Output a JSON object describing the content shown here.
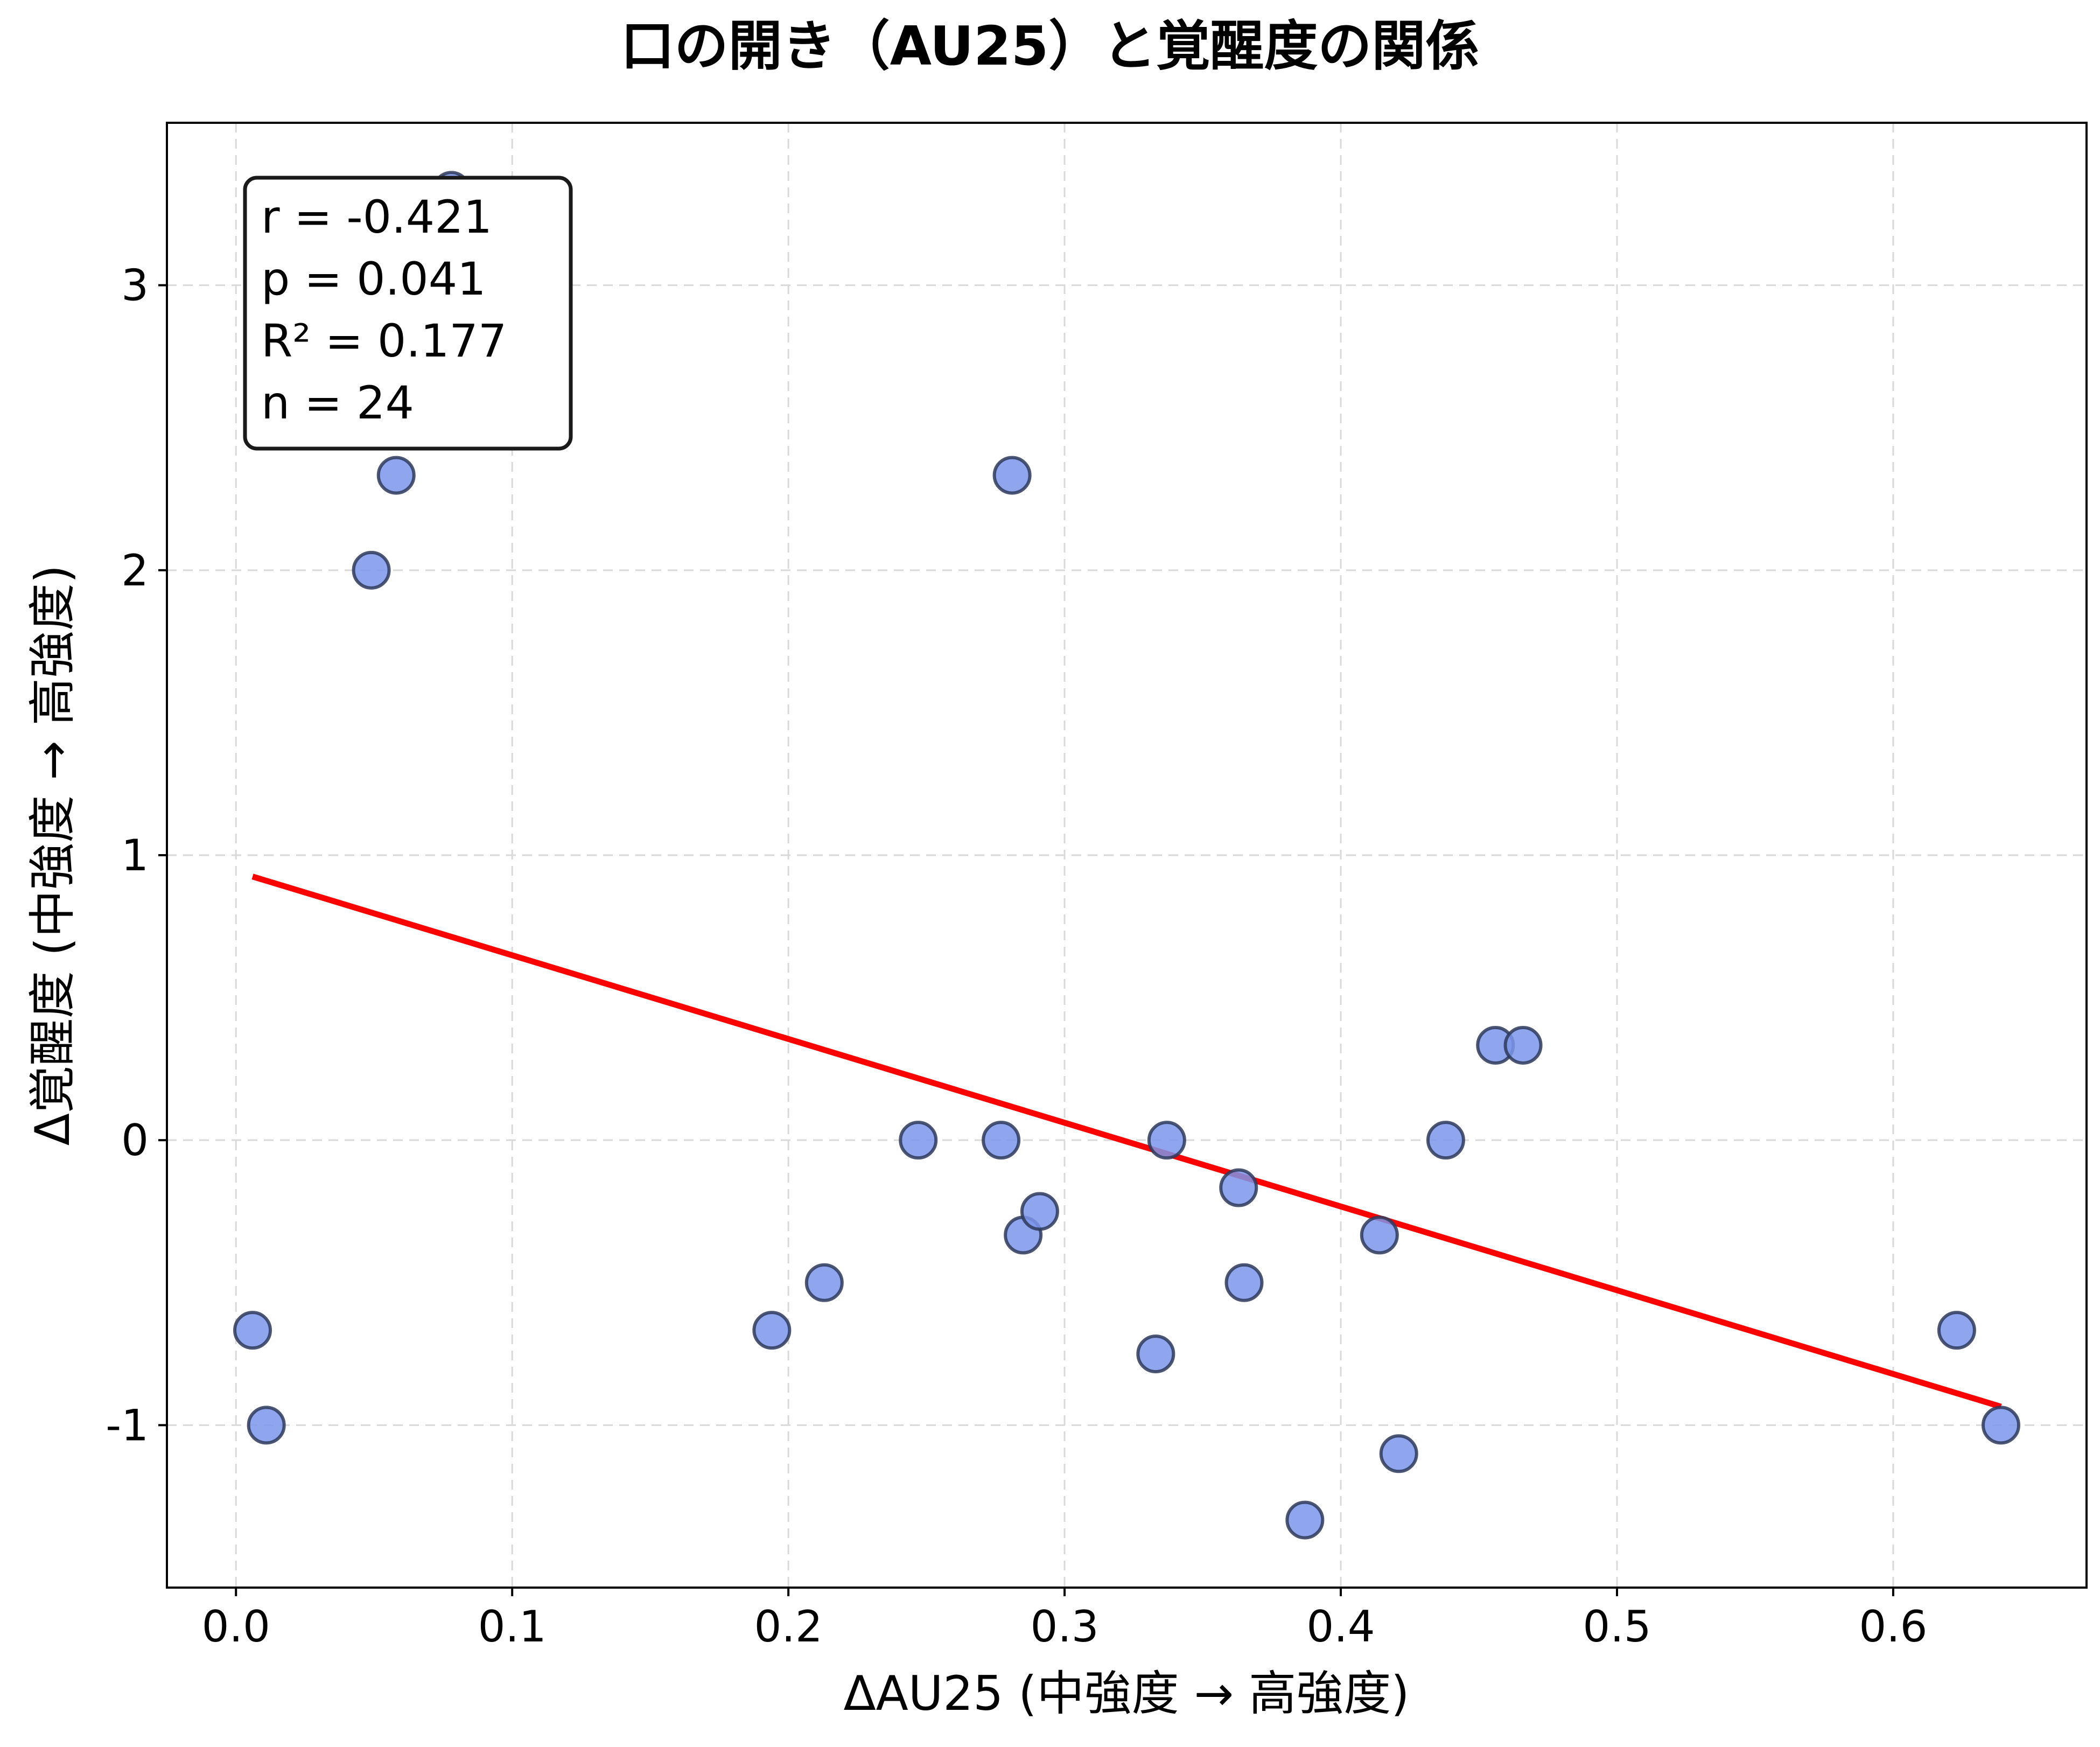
{
  "chart_data": {
    "type": "scatter",
    "title": "口の開き（AU25）と覚醒度の関係",
    "xlabel": "ΔAU25 (中強度 → 高強度)",
    "ylabel": "Δ覚醒度 (中強度 → 高強度)",
    "xlim": [
      -0.025,
      0.67
    ],
    "ylim": [
      -1.57,
      3.57
    ],
    "xticks": [
      0.0,
      0.1,
      0.2,
      0.3,
      0.4,
      0.5,
      0.6
    ],
    "xtick_labels": [
      "0.0",
      "0.1",
      "0.2",
      "0.3",
      "0.4",
      "0.5",
      "0.6"
    ],
    "yticks": [
      3,
      2,
      1,
      0,
      -1
    ],
    "ytick_labels": [
      "3",
      "2",
      "1",
      "0",
      "-1"
    ],
    "grid": true,
    "points": [
      {
        "x": 0.006,
        "y": -0.667
      },
      {
        "x": 0.011,
        "y": -1.0
      },
      {
        "x": 0.049,
        "y": 2.0
      },
      {
        "x": 0.058,
        "y": 2.333
      },
      {
        "x": 0.078,
        "y": 3.333
      },
      {
        "x": 0.194,
        "y": -0.667
      },
      {
        "x": 0.213,
        "y": -0.5
      },
      {
        "x": 0.247,
        "y": 0.0
      },
      {
        "x": 0.277,
        "y": 0.0
      },
      {
        "x": 0.281,
        "y": 2.333
      },
      {
        "x": 0.285,
        "y": -0.333
      },
      {
        "x": 0.291,
        "y": -0.25
      },
      {
        "x": 0.333,
        "y": -0.75
      },
      {
        "x": 0.337,
        "y": 0.0
      },
      {
        "x": 0.363,
        "y": -0.167
      },
      {
        "x": 0.365,
        "y": -0.5
      },
      {
        "x": 0.387,
        "y": -1.333
      },
      {
        "x": 0.414,
        "y": -0.333
      },
      {
        "x": 0.421,
        "y": -1.1
      },
      {
        "x": 0.438,
        "y": 0.0
      },
      {
        "x": 0.456,
        "y": 0.333
      },
      {
        "x": 0.466,
        "y": 0.333
      },
      {
        "x": 0.623,
        "y": -0.667
      },
      {
        "x": 0.639,
        "y": -1.0
      }
    ],
    "fit_line": {
      "x": [
        0.006,
        0.639
      ],
      "y": [
        0.925,
        -0.935
      ],
      "color": "#ff0000"
    },
    "stats": {
      "r": "r = -0.421",
      "p": "p = 0.041",
      "r2": "R² = 0.177",
      "n": "n = 24"
    },
    "point_color": "#7b95ea"
  }
}
